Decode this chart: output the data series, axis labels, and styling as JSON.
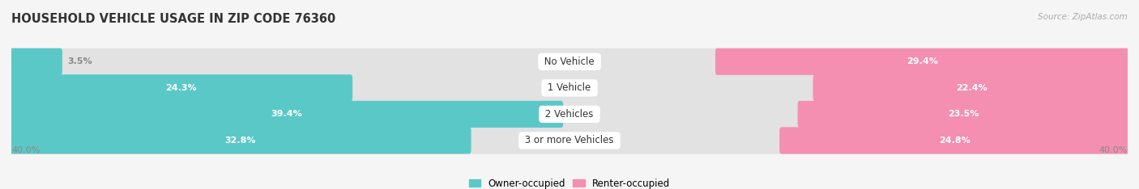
{
  "title": "HOUSEHOLD VEHICLE USAGE IN ZIP CODE 76360",
  "source": "Source: ZipAtlas.com",
  "categories": [
    "No Vehicle",
    "1 Vehicle",
    "2 Vehicles",
    "3 or more Vehicles"
  ],
  "owner_values": [
    3.5,
    24.3,
    39.4,
    32.8
  ],
  "renter_values": [
    29.4,
    22.4,
    23.5,
    24.8
  ],
  "owner_color": "#5BC8C8",
  "renter_color": "#F48FB1",
  "axis_max": 40.0,
  "bar_height": 0.72,
  "background_color": "#f5f5f5",
  "bar_bg_color": "#e2e2e2",
  "row_bg_color": "#ebebeb",
  "title_fontsize": 10.5,
  "source_fontsize": 7.5,
  "label_fontsize": 8,
  "category_fontsize": 8.5,
  "outside_label_min": 6.0
}
